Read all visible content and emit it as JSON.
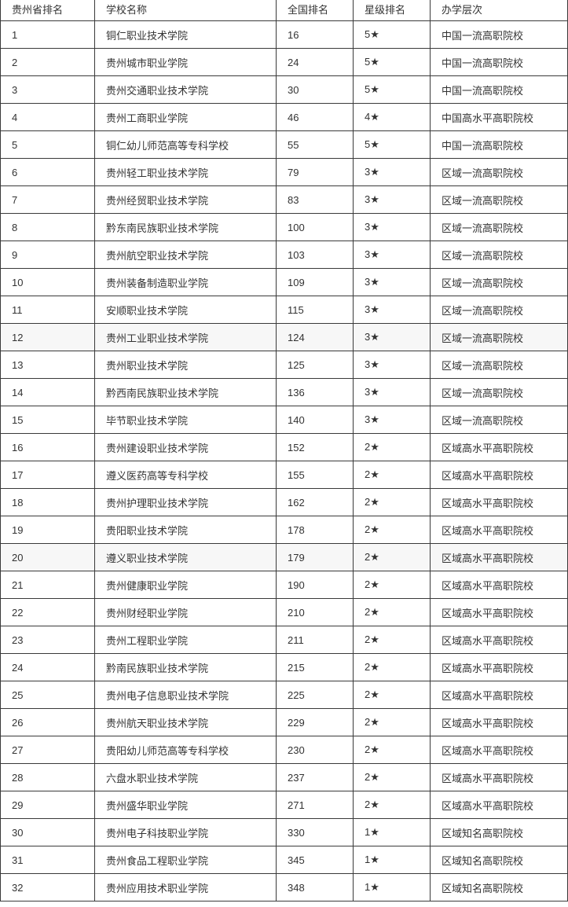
{
  "table": {
    "headers": [
      "贵州省排名",
      "学校名称",
      "全国排名",
      "星级排名",
      "办学层次"
    ],
    "rows": [
      [
        "1",
        "铜仁职业技术学院",
        "16",
        "5★",
        "中国一流高职院校"
      ],
      [
        "2",
        "贵州城市职业学院",
        "24",
        "5★",
        "中国一流高职院校"
      ],
      [
        "3",
        "贵州交通职业技术学院",
        "30",
        "5★",
        "中国一流高职院校"
      ],
      [
        "4",
        "贵州工商职业学院",
        "46",
        "4★",
        "中国高水平高职院校"
      ],
      [
        "5",
        "铜仁幼儿师范高等专科学校",
        "55",
        "5★",
        "中国一流高职院校"
      ],
      [
        "6",
        "贵州轻工职业技术学院",
        "79",
        "3★",
        "区域一流高职院校"
      ],
      [
        "7",
        "贵州经贸职业技术学院",
        "83",
        "3★",
        "区域一流高职院校"
      ],
      [
        "8",
        "黔东南民族职业技术学院",
        "100",
        "3★",
        "区域一流高职院校"
      ],
      [
        "9",
        "贵州航空职业技术学院",
        "103",
        "3★",
        "区域一流高职院校"
      ],
      [
        "10",
        "贵州装备制造职业学院",
        "109",
        "3★",
        "区域一流高职院校"
      ],
      [
        "11",
        "安顺职业技术学院",
        "115",
        "3★",
        "区域一流高职院校"
      ],
      [
        "12",
        "贵州工业职业技术学院",
        "124",
        "3★",
        "区域一流高职院校"
      ],
      [
        "13",
        "贵州职业技术学院",
        "125",
        "3★",
        "区域一流高职院校"
      ],
      [
        "14",
        "黔西南民族职业技术学院",
        "136",
        "3★",
        "区域一流高职院校"
      ],
      [
        "15",
        "毕节职业技术学院",
        "140",
        "3★",
        "区域一流高职院校"
      ],
      [
        "16",
        "贵州建设职业技术学院",
        "152",
        "2★",
        "区域高水平高职院校"
      ],
      [
        "17",
        "遵义医药高等专科学校",
        "155",
        "2★",
        "区域高水平高职院校"
      ],
      [
        "18",
        "贵州护理职业技术学院",
        "162",
        "2★",
        "区域高水平高职院校"
      ],
      [
        "19",
        "贵阳职业技术学院",
        "178",
        "2★",
        "区域高水平高职院校"
      ],
      [
        "20",
        "遵义职业技术学院",
        "179",
        "2★",
        "区域高水平高职院校"
      ],
      [
        "21",
        "贵州健康职业学院",
        "190",
        "2★",
        "区域高水平高职院校"
      ],
      [
        "22",
        "贵州财经职业学院",
        "210",
        "2★",
        "区域高水平高职院校"
      ],
      [
        "23",
        "贵州工程职业学院",
        "211",
        "2★",
        "区域高水平高职院校"
      ],
      [
        "24",
        "黔南民族职业技术学院",
        "215",
        "2★",
        "区域高水平高职院校"
      ],
      [
        "25",
        "贵州电子信息职业技术学院",
        "225",
        "2★",
        "区域高水平高职院校"
      ],
      [
        "26",
        "贵州航天职业技术学院",
        "229",
        "2★",
        "区域高水平高职院校"
      ],
      [
        "27",
        "贵阳幼儿师范高等专科学校",
        "230",
        "2★",
        "区域高水平高职院校"
      ],
      [
        "28",
        "六盘水职业技术学院",
        "237",
        "2★",
        "区域高水平高职院校"
      ],
      [
        "29",
        "贵州盛华职业学院",
        "271",
        "2★",
        "区域高水平高职院校"
      ],
      [
        "30",
        "贵州电子科技职业学院",
        "330",
        "1★",
        "区域知名高职院校"
      ],
      [
        "31",
        "贵州食品工程职业学院",
        "345",
        "1★",
        "区域知名高职院校"
      ],
      [
        "32",
        "贵州应用技术职业学院",
        "348",
        "1★",
        "区域知名高职院校"
      ]
    ],
    "highlighted_rows": [
      12,
      20
    ]
  }
}
